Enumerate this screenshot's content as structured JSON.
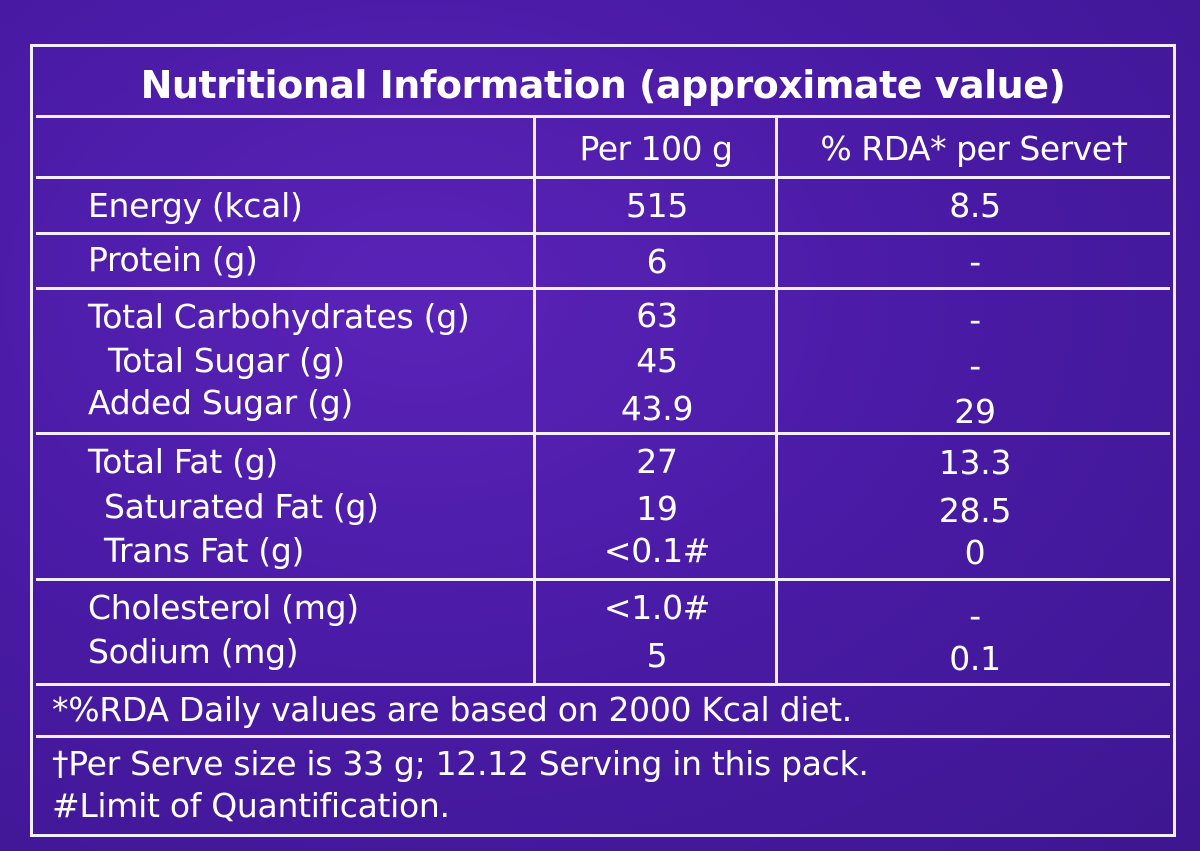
{
  "title": "Nutritional Information (approximate value)",
  "columns": {
    "per_100g": "Per 100 g",
    "rda_per_serve": "% RDA* per Serve†"
  },
  "rows": [
    {
      "name": "Energy (kcal)",
      "per_100g": "515",
      "rda": "8.5"
    },
    {
      "name": "Protein (g)",
      "per_100g": "6",
      "rda": "-"
    },
    {
      "name": "Total Carbohydrates (g)",
      "per_100g": "63",
      "rda": "-"
    },
    {
      "name": "Total Sugar (g)",
      "per_100g": "45",
      "rda": "-"
    },
    {
      "name": "Added Sugar (g)",
      "per_100g": "43.9",
      "rda": "29"
    },
    {
      "name": "Total Fat (g)",
      "per_100g": "27",
      "rda": "13.3"
    },
    {
      "name": "Saturated Fat (g)",
      "per_100g": "19",
      "rda": "28.5"
    },
    {
      "name": "Trans Fat (g)",
      "per_100g": "<0.1#",
      "rda": "0"
    },
    {
      "name": "Cholesterol (mg)",
      "per_100g": "<1.0#",
      "rda": "-"
    },
    {
      "name": "Sodium (mg)",
      "per_100g": "5",
      "rda": "0.1"
    }
  ],
  "footnotes": {
    "rda_note": "*%RDA Daily values are based on 2000 Kcal diet.",
    "serve_note": "†Per Serve size is 33 g; 12.12 Serving in this pack.",
    "loq_note": "#Limit of Quantification."
  }
}
